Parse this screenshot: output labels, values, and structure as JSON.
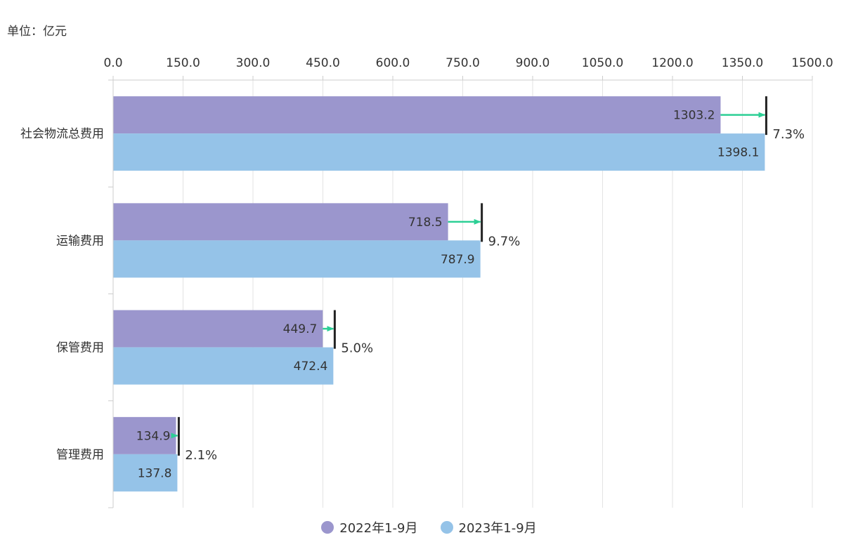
{
  "unit_label": "单位：亿元",
  "colors": {
    "series_2022": "#9b96cd",
    "series_2023": "#95c3e8",
    "arrow": "#2ccf95",
    "marker": "#222222",
    "grid": "#e3e3e3"
  },
  "chart_data": {
    "type": "bar",
    "orientation": "horizontal",
    "title": "",
    "xlabel": "",
    "ylabel": "",
    "xlim": [
      0,
      1500
    ],
    "x_ticks": [
      "0.0",
      "150.0",
      "300.0",
      "450.0",
      "600.0",
      "750.0",
      "900.0",
      "1050.0",
      "1200.0",
      "1350.0",
      "1500.0"
    ],
    "categories": [
      "社会物流总费用",
      "运输费用",
      "保管费用",
      "管理费用"
    ],
    "series": [
      {
        "name": "2022年1-9月",
        "values": [
          1303.2,
          718.5,
          449.7,
          134.9
        ],
        "labels": [
          "1303.2",
          "718.5",
          "449.7",
          "134.9"
        ]
      },
      {
        "name": "2023年1-9月",
        "values": [
          1398.1,
          787.9,
          472.4,
          137.8
        ],
        "labels": [
          "1398.1",
          "787.9",
          "472.4",
          "137.8"
        ]
      }
    ],
    "growth": [
      "7.3%",
      "9.7%",
      "5.0%",
      "2.1%"
    ],
    "grid": true,
    "legend_position": "bottom-center"
  }
}
